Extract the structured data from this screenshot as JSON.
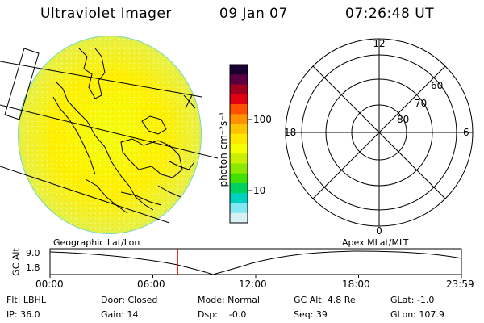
{
  "header": {
    "instrument": "Ultraviolet Imager",
    "date": "09 Jan 07",
    "time": "07:26:48 UT"
  },
  "colorbar": {
    "unit_label": "photon cm⁻²s⁻¹",
    "ticks": [
      "100",
      "10"
    ],
    "colors": [
      "#1a0030",
      "#5a0040",
      "#a00020",
      "#e00010",
      "#ff5000",
      "#ff9000",
      "#ffc400",
      "#ffe800",
      "#f4ff00",
      "#c8f000",
      "#8ce800",
      "#40e000",
      "#00d060",
      "#00d0c0",
      "#80e8f0",
      "#d8f0f4"
    ]
  },
  "polar_plot": {
    "hour_labels": {
      "top": "12",
      "left": "18",
      "right": "6",
      "bottom": "0"
    },
    "lat_labels": [
      "60",
      "70",
      "80"
    ]
  },
  "timeline": {
    "left_label": "Geographic Lat/Lon",
    "right_label": "Apex MLat/MLT",
    "axis_label": "GC Alt",
    "y_ticks": [
      "9.0",
      "1.8"
    ],
    "x_ticks": [
      "00:00",
      "06:00",
      "12:00",
      "18:00",
      "23:59"
    ],
    "current_time_hours": 7.45,
    "marker_color": "#e00000"
  },
  "info": {
    "row1": [
      "Flt: LBHL",
      "Door: Closed",
      "Mode: Normal",
      "GC Alt: 4.8 Re",
      "GLat: -1.0"
    ],
    "row2": [
      "IP: 36.0",
      "Gain: 14",
      "Dsp:    -0.0",
      "Seq: 39",
      "GLon: 107.9"
    ]
  }
}
